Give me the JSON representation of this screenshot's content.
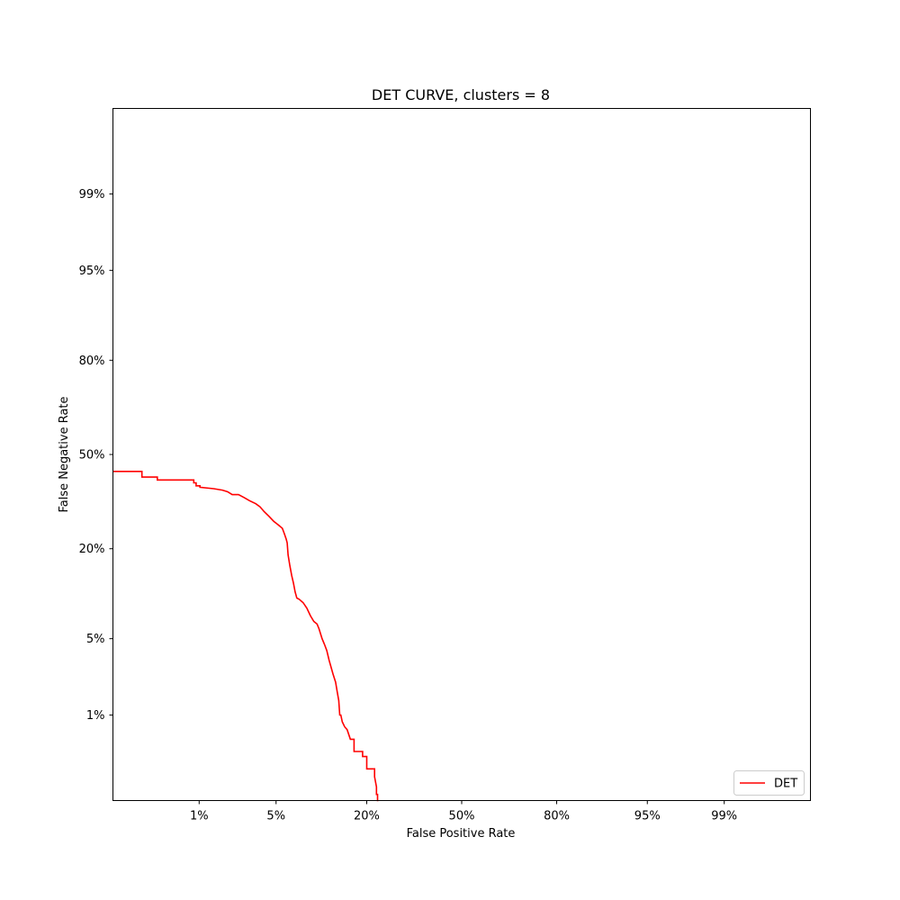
{
  "chart_data": {
    "type": "line",
    "title": "DET CURVE, clusters = 8",
    "xlabel": "False Positive Rate",
    "ylabel": "False Negative Rate",
    "scale": "probit",
    "xlim": [
      0.001,
      0.999
    ],
    "ylim": [
      0.001,
      0.999
    ],
    "x_ticks": [
      0.01,
      0.05,
      0.2,
      0.5,
      0.8,
      0.95,
      0.99
    ],
    "x_tick_labels": [
      "1%",
      "5%",
      "20%",
      "50%",
      "80%",
      "95%",
      "99%"
    ],
    "y_ticks": [
      0.01,
      0.05,
      0.2,
      0.5,
      0.8,
      0.95,
      0.99
    ],
    "y_tick_labels": [
      "1%",
      "5%",
      "20%",
      "50%",
      "80%",
      "95%",
      "99%"
    ],
    "grid": false,
    "legend": {
      "position": "lower-right",
      "entries": [
        "DET"
      ]
    },
    "series": [
      {
        "name": "DET",
        "color": "#ff0000",
        "x": [
          0.001,
          0.0023,
          0.0023,
          0.0035,
          0.0035,
          0.0088,
          0.0088,
          0.0093,
          0.0093,
          0.0102,
          0.0102,
          0.014,
          0.017,
          0.019,
          0.021,
          0.024,
          0.027,
          0.03,
          0.034,
          0.037,
          0.04,
          0.044,
          0.048,
          0.052,
          0.056,
          0.058,
          0.06,
          0.061,
          0.062,
          0.064,
          0.066,
          0.068,
          0.07,
          0.072,
          0.075,
          0.08,
          0.085,
          0.09,
          0.095,
          0.1,
          0.103,
          0.108,
          0.112,
          0.116,
          0.12,
          0.127,
          0.132,
          0.135,
          0.138,
          0.14,
          0.142,
          0.145,
          0.15,
          0.155,
          0.162,
          0.17,
          0.17,
          0.19,
          0.19,
          0.2,
          0.2,
          0.22,
          0.22,
          0.225,
          0.225,
          0.228,
          0.228,
          0.23,
          0.23
        ],
        "y": [
          0.44,
          0.44,
          0.42,
          0.42,
          0.41,
          0.41,
          0.4,
          0.4,
          0.39,
          0.39,
          0.385,
          0.38,
          0.375,
          0.37,
          0.36,
          0.36,
          0.35,
          0.34,
          0.33,
          0.32,
          0.305,
          0.29,
          0.275,
          0.265,
          0.255,
          0.24,
          0.225,
          0.215,
          0.185,
          0.16,
          0.14,
          0.125,
          0.11,
          0.1,
          0.098,
          0.093,
          0.085,
          0.075,
          0.068,
          0.065,
          0.06,
          0.05,
          0.045,
          0.04,
          0.033,
          0.025,
          0.021,
          0.017,
          0.014,
          0.01,
          0.01,
          0.0085,
          0.0075,
          0.007,
          0.0055,
          0.0055,
          0.004,
          0.004,
          0.0035,
          0.0035,
          0.0025,
          0.0025,
          0.002,
          0.0015,
          0.0012,
          0.0012,
          0.001,
          0.001,
          0.001
        ]
      }
    ]
  }
}
